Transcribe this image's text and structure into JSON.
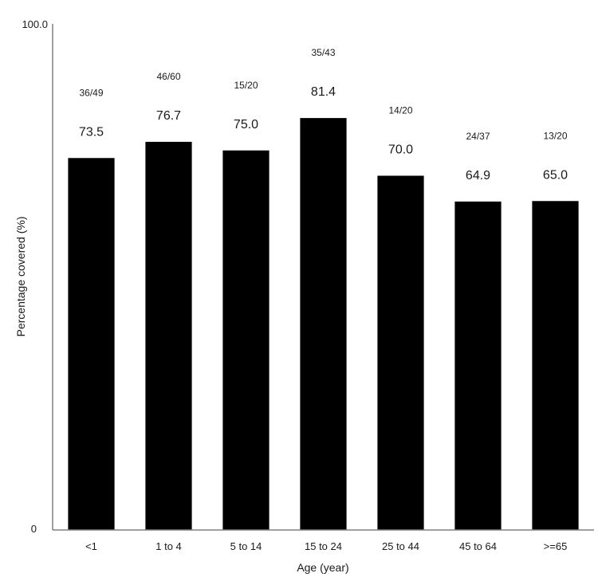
{
  "chart_data": {
    "type": "bar",
    "categories": [
      "<1",
      "1 to 4",
      "5 to 14",
      "15 to 24",
      "25 to 44",
      "45 to 64",
      ">=65"
    ],
    "values": [
      73.5,
      76.7,
      75.0,
      81.4,
      70.0,
      64.9,
      65.0
    ],
    "value_labels": [
      "73.5",
      "76.7",
      "75.0",
      "81.4",
      "70.0",
      "64.9",
      "65.0"
    ],
    "fraction_labels": [
      "36/49",
      "46/60",
      "15/20",
      "35/43",
      "14/20",
      "24/37",
      "13/20"
    ],
    "xlabel": "Age (year)",
    "ylabel": "Percentage covered (%)",
    "ytick_labels": [
      "100.0",
      "0"
    ],
    "ylim": [
      0,
      100
    ],
    "grid": false,
    "bar_color": "#000000"
  }
}
